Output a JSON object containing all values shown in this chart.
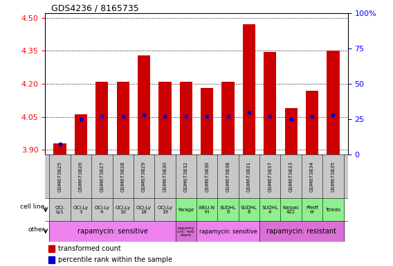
{
  "title": "GDS4236 / 8165735",
  "samples": [
    "GSM673825",
    "GSM673826",
    "GSM673827",
    "GSM673828",
    "GSM673829",
    "GSM673830",
    "GSM673832",
    "GSM673836",
    "GSM673838",
    "GSM673831",
    "GSM673837",
    "GSM673833",
    "GSM673834",
    "GSM673835"
  ],
  "transformed_counts": [
    3.93,
    4.06,
    4.21,
    4.21,
    4.33,
    4.21,
    4.21,
    4.18,
    4.21,
    4.47,
    4.345,
    4.09,
    4.17,
    4.35
  ],
  "percentile_ranks": [
    7,
    25,
    27,
    27,
    28,
    27,
    27,
    27,
    27,
    30,
    27,
    25,
    27,
    28
  ],
  "cell_line_colors": [
    "#c8c8c8",
    "#c8c8c8",
    "#c8c8c8",
    "#c8c8c8",
    "#c8c8c8",
    "#c8c8c8",
    "#90ee90",
    "#90ee90",
    "#90ee90",
    "#90ee90",
    "#90ee90",
    "#90ee90",
    "#90ee90",
    "#90ee90"
  ],
  "cell_line_labels": [
    "OCI-\nLy1",
    "OCI-Ly\n3",
    "OCI-Ly\n4",
    "OCI-Ly\n10",
    "OCI-Ly\n18",
    "OCI-Ly\n19",
    "Farage",
    "WSU-N\nIH",
    "SUDHL\n6",
    "SUDHL\n8",
    "SUDHL\n4",
    "Karpas\n422",
    "Pfeiff\ner",
    "Toledo"
  ],
  "ylim_left": [
    3.88,
    4.52
  ],
  "ylim_right": [
    0,
    100
  ],
  "yticks_left": [
    3.9,
    4.05,
    4.2,
    4.35,
    4.5
  ],
  "yticks_right": [
    0,
    25,
    50,
    75,
    100
  ],
  "bar_color": "#cc0000",
  "percentile_color": "#0000cc",
  "bar_width": 0.6,
  "gsm_row_color": "#c8c8c8",
  "sensitive_color": "#ee82ee",
  "resistant_color": "#da70d6",
  "green_color": "#90ee90"
}
